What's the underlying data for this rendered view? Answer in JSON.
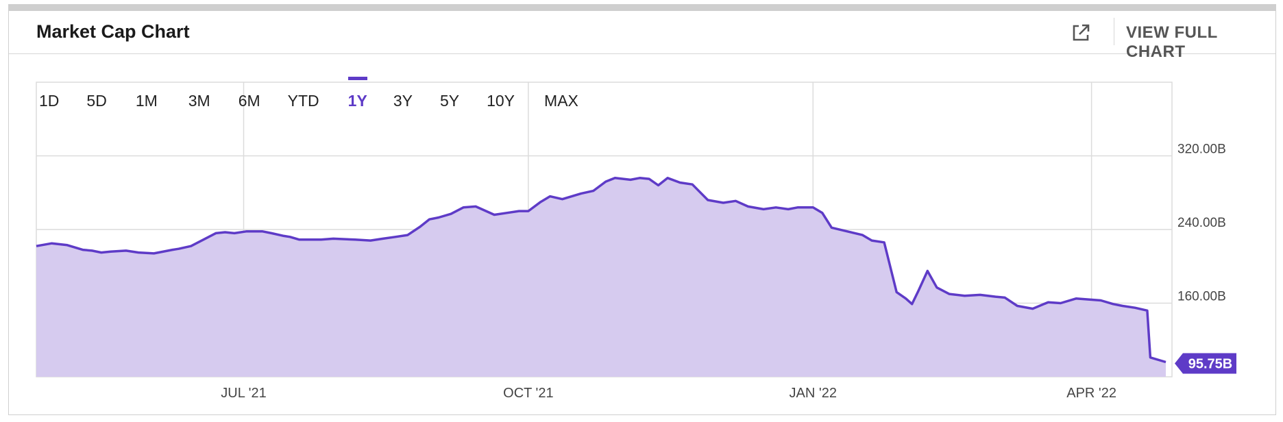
{
  "header": {
    "title": "Market Cap Chart",
    "external_icon": "external-link-icon",
    "view_full_chart": "VIEW FULL CHART"
  },
  "time_ranges": [
    {
      "label": "1D",
      "active": false
    },
    {
      "label": "5D",
      "active": false
    },
    {
      "label": "1M",
      "active": false
    },
    {
      "label": "3M",
      "active": false
    },
    {
      "label": "6M",
      "active": false
    },
    {
      "label": "YTD",
      "active": false
    },
    {
      "label": "1Y",
      "active": true
    },
    {
      "label": "3Y",
      "active": false
    },
    {
      "label": "5Y",
      "active": false
    },
    {
      "label": "10Y",
      "active": false
    },
    {
      "label": "MAX",
      "active": false
    }
  ],
  "colors": {
    "line": "#5e3bc7",
    "fill": "#d6cbef",
    "grid": "#dcdcdc",
    "badge": "#5e3bc7"
  },
  "chart_data": {
    "type": "area",
    "title": "Market Cap Chart",
    "unit": "B",
    "ylim": [
      80,
      400
    ],
    "yticks": [
      160,
      240,
      320
    ],
    "ytick_labels": [
      "160.00B",
      "240.00B",
      "320.00B"
    ],
    "xlim": [
      "2021-04-25",
      "2022-04-27"
    ],
    "xticks": [
      "2021-07-01",
      "2021-10-01",
      "2022-01-01",
      "2022-04-01"
    ],
    "xtick_labels": [
      "JUL '21",
      "OCT '21",
      "JAN '22",
      "APR '22"
    ],
    "last_value_label": "95.75B",
    "grid": true,
    "series": [
      {
        "x": [
          "2021-04-25",
          "2021-04-30",
          "2021-05-05",
          "2021-05-10",
          "2021-05-13",
          "2021-05-16",
          "2021-05-19",
          "2021-05-24",
          "2021-05-28",
          "2021-06-02",
          "2021-06-08",
          "2021-06-10",
          "2021-06-14",
          "2021-06-18",
          "2021-06-22",
          "2021-06-25",
          "2021-06-28",
          "2021-07-02",
          "2021-07-07",
          "2021-07-10",
          "2021-07-14",
          "2021-07-16",
          "2021-07-19",
          "2021-07-26",
          "2021-07-30",
          "2021-08-06",
          "2021-08-11",
          "2021-08-15",
          "2021-08-19",
          "2021-08-23",
          "2021-08-27",
          "2021-08-30",
          "2021-09-02",
          "2021-09-06",
          "2021-09-10",
          "2021-09-14",
          "2021-09-20",
          "2021-09-24",
          "2021-09-28",
          "2021-10-01",
          "2021-10-05",
          "2021-10-08",
          "2021-10-12",
          "2021-10-18",
          "2021-10-22",
          "2021-10-26",
          "2021-10-29",
          "2021-11-03",
          "2021-11-06",
          "2021-11-09",
          "2021-11-12",
          "2021-11-15",
          "2021-11-19",
          "2021-11-23",
          "2021-11-28",
          "2021-12-03",
          "2021-12-07",
          "2021-12-11",
          "2021-12-16",
          "2021-12-20",
          "2021-12-24",
          "2021-12-27",
          "2022-01-01",
          "2022-01-04",
          "2022-01-07",
          "2022-01-12",
          "2022-01-17",
          "2022-01-20",
          "2022-01-24",
          "2022-01-28",
          "2022-01-31",
          "2022-02-02",
          "2022-02-04",
          "2022-02-07",
          "2022-02-10",
          "2022-02-14",
          "2022-02-19",
          "2022-02-24",
          "2022-03-01",
          "2022-03-04",
          "2022-03-08",
          "2022-03-13",
          "2022-03-18",
          "2022-03-22",
          "2022-03-27",
          "2022-03-31",
          "2022-04-04",
          "2022-04-08",
          "2022-04-11",
          "2022-04-15",
          "2022-04-19",
          "2022-04-20",
          "2022-04-25"
        ],
        "y": [
          222,
          225,
          223,
          218,
          217,
          215,
          216,
          217,
          215,
          214,
          218,
          219,
          222,
          229,
          236,
          237,
          236,
          238,
          238,
          236,
          233,
          232,
          229,
          229,
          230,
          229,
          228,
          230,
          232,
          234,
          243,
          251,
          253,
          257,
          264,
          265,
          256,
          258,
          260,
          260,
          270,
          276,
          273,
          279,
          282,
          292,
          296,
          294,
          296,
          295,
          288,
          296,
          291,
          289,
          272,
          269,
          271,
          265,
          262,
          264,
          262,
          264,
          264,
          258,
          242,
          238,
          234,
          228,
          226,
          172,
          165,
          159,
          173,
          195,
          177,
          170,
          168,
          169,
          167,
          166,
          157,
          154,
          161,
          160,
          165,
          164,
          163,
          159,
          157,
          155,
          152,
          101,
          96
        ]
      }
    ]
  }
}
